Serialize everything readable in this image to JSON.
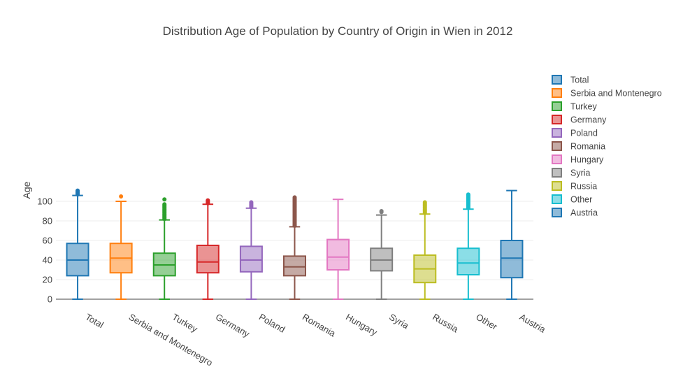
{
  "chart_data": {
    "type": "box",
    "title": "Distribution Age of Population by Country of Origin in Wien in 2012",
    "ylabel": "Age",
    "xlabel": "",
    "ylim": [
      0,
      115
    ],
    "yticks": [
      0,
      20,
      40,
      60,
      80,
      100
    ],
    "grid": true,
    "legend_position": "right",
    "categories": [
      "Total",
      "Serbia and Montenegro",
      "Turkey",
      "Germany",
      "Poland",
      "Romania",
      "Hungary",
      "Syria",
      "Russia",
      "Other",
      "Austria"
    ],
    "series": [
      {
        "name": "Total",
        "color": "#1f77b4",
        "min": 0,
        "q1": 24,
        "median": 40,
        "q3": 57,
        "whisker_high": 106,
        "outliers": [
          107,
          108,
          109,
          110,
          111
        ]
      },
      {
        "name": "Serbia and Montenegro",
        "color": "#ff7f0e",
        "min": 0,
        "q1": 27,
        "median": 42,
        "q3": 57,
        "whisker_high": 100,
        "outliers": [
          105
        ]
      },
      {
        "name": "Turkey",
        "color": "#2ca02c",
        "min": 0,
        "q1": 24,
        "median": 35,
        "q3": 47,
        "whisker_high": 81,
        "outliers": [
          82,
          83,
          84,
          85,
          86,
          87,
          88,
          89,
          90,
          91,
          92,
          93,
          94,
          95,
          96,
          97,
          102
        ]
      },
      {
        "name": "Germany",
        "color": "#d62728",
        "min": 0,
        "q1": 27,
        "median": 38,
        "q3": 55,
        "whisker_high": 97,
        "outliers": [
          98,
          99,
          100,
          101
        ]
      },
      {
        "name": "Poland",
        "color": "#9467bd",
        "min": 0,
        "q1": 28,
        "median": 40,
        "q3": 54,
        "whisker_high": 93,
        "outliers": [
          94,
          95,
          96,
          97,
          98,
          99
        ]
      },
      {
        "name": "Romania",
        "color": "#8c564b",
        "min": 0,
        "q1": 24,
        "median": 33,
        "q3": 44,
        "whisker_high": 74,
        "outliers": [
          75,
          76,
          77,
          78,
          79,
          80,
          81,
          82,
          83,
          84,
          85,
          86,
          87,
          88,
          89,
          90,
          91,
          92,
          93,
          94,
          95,
          96,
          97,
          98,
          99,
          100,
          101,
          102,
          103,
          104
        ]
      },
      {
        "name": "Hungary",
        "color": "#e377c2",
        "min": 0,
        "q1": 30,
        "median": 43,
        "q3": 61,
        "whisker_high": 102,
        "outliers": []
      },
      {
        "name": "Syria",
        "color": "#7f7f7f",
        "min": 0,
        "q1": 29,
        "median": 40,
        "q3": 52,
        "whisker_high": 86,
        "outliers": [
          89,
          90
        ]
      },
      {
        "name": "Russia",
        "color": "#bcbd22",
        "min": 0,
        "q1": 17,
        "median": 31,
        "q3": 45,
        "whisker_high": 87,
        "outliers": [
          88,
          89,
          90,
          91,
          92,
          93,
          94,
          95,
          96,
          97,
          98,
          99
        ]
      },
      {
        "name": "Other",
        "color": "#17becf",
        "min": 0,
        "q1": 25,
        "median": 37,
        "q3": 52,
        "whisker_high": 92,
        "outliers": [
          93,
          94,
          95,
          96,
          97,
          98,
          99,
          100,
          101,
          102,
          103,
          104,
          105,
          106,
          107
        ]
      },
      {
        "name": "Austria",
        "color": "#1f77b4",
        "min": 0,
        "q1": 22,
        "median": 42,
        "q3": 60,
        "whisker_high": 111,
        "outliers": []
      }
    ]
  }
}
